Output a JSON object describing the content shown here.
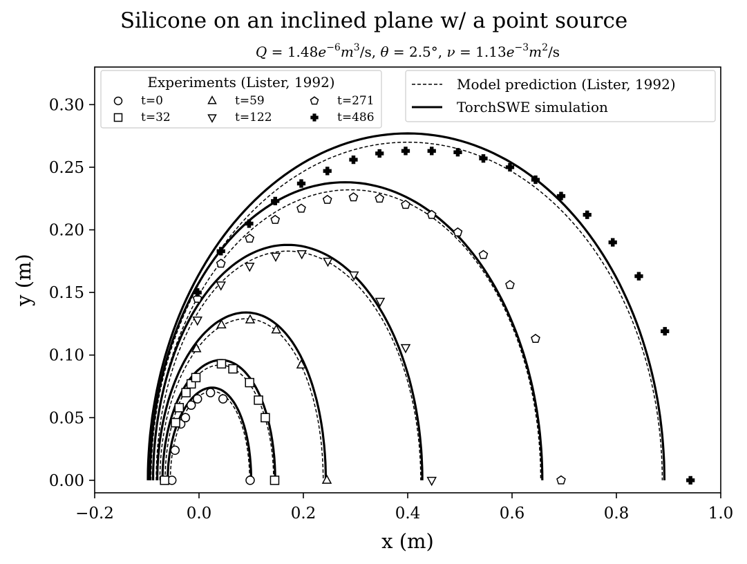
{
  "chart_data": {
    "type": "scatter",
    "title": "Silicone on an inclined plane w/ a point source",
    "subtitle": {
      "q_label": "Q",
      "q_value": "1.48",
      "q_exp": "−6",
      "q_unit_base": "m",
      "q_unit_exp": "3",
      "q_unit_tail": "/s,",
      "theta_label": "θ",
      "theta_value": "2.5°,",
      "nu_label": "ν",
      "nu_value": "1.13",
      "nu_exp": "−3",
      "nu_unit_base": "m",
      "nu_unit_exp": "2",
      "nu_unit_tail": "/s"
    },
    "xlabel": "x (m)",
    "ylabel": "y (m)",
    "xlim": [
      -0.2,
      1.0
    ],
    "ylim": [
      -0.01,
      0.33
    ],
    "xticks": [
      -0.2,
      0.0,
      0.2,
      0.4,
      0.6,
      0.8,
      1.0
    ],
    "xtick_labels": [
      "−0.2",
      "0.0",
      "0.2",
      "0.4",
      "0.6",
      "0.8",
      "1.0"
    ],
    "yticks": [
      0.0,
      0.05,
      0.1,
      0.15,
      0.2,
      0.25,
      0.3
    ],
    "ytick_labels": [
      "0.00",
      "0.05",
      "0.10",
      "0.15",
      "0.20",
      "0.25",
      "0.30"
    ],
    "grid": false,
    "legend_experiments": {
      "title": "Experiments (Lister, 1992)",
      "placement": "top-left"
    },
    "legend_models": {
      "placement": "top-right",
      "entries": [
        {
          "label": "Model prediction (Lister, 1992)",
          "style": "dashed"
        },
        {
          "label": "TorchSWE simulation",
          "style": "solid"
        }
      ]
    },
    "experiments": [
      {
        "name": "t=0",
        "marker": "circle",
        "points": [
          [
            -0.052,
            0.0
          ],
          [
            -0.046,
            0.024
          ],
          [
            -0.035,
            0.045
          ],
          [
            -0.026,
            0.05
          ],
          [
            -0.015,
            0.06
          ],
          [
            -0.003,
            0.065
          ],
          [
            0.022,
            0.07
          ],
          [
            0.046,
            0.065
          ],
          [
            0.098,
            0.0
          ]
        ]
      },
      {
        "name": "t=32",
        "marker": "square",
        "points": [
          [
            -0.066,
            0.0
          ],
          [
            -0.045,
            0.046
          ],
          [
            -0.038,
            0.058
          ],
          [
            -0.025,
            0.07
          ],
          [
            -0.015,
            0.077
          ],
          [
            -0.006,
            0.082
          ],
          [
            0.043,
            0.093
          ],
          [
            0.065,
            0.089
          ],
          [
            0.097,
            0.078
          ],
          [
            0.114,
            0.064
          ],
          [
            0.127,
            0.05
          ],
          [
            0.145,
            0.0
          ]
        ]
      },
      {
        "name": "t=59",
        "marker": "triangle-up",
        "points": [
          [
            -0.005,
            0.105
          ],
          [
            0.043,
            0.124
          ],
          [
            0.098,
            0.128
          ],
          [
            0.148,
            0.12
          ],
          [
            0.196,
            0.092
          ],
          [
            0.245,
            0.0
          ]
        ]
      },
      {
        "name": "t=122",
        "marker": "triangle-down",
        "points": [
          [
            -0.003,
            0.128
          ],
          [
            0.042,
            0.156
          ],
          [
            0.097,
            0.171
          ],
          [
            0.147,
            0.179
          ],
          [
            0.197,
            0.181
          ],
          [
            0.247,
            0.175
          ],
          [
            0.297,
            0.164
          ],
          [
            0.347,
            0.143
          ],
          [
            0.396,
            0.106
          ],
          [
            0.446,
            0.0
          ]
        ]
      },
      {
        "name": "t=271",
        "marker": "pentagon",
        "points": [
          [
            -0.003,
            0.145
          ],
          [
            0.042,
            0.173
          ],
          [
            0.097,
            0.193
          ],
          [
            0.146,
            0.208
          ],
          [
            0.196,
            0.217
          ],
          [
            0.246,
            0.224
          ],
          [
            0.296,
            0.226
          ],
          [
            0.346,
            0.225
          ],
          [
            0.396,
            0.22
          ],
          [
            0.446,
            0.212
          ],
          [
            0.496,
            0.198
          ],
          [
            0.545,
            0.18
          ],
          [
            0.596,
            0.156
          ],
          [
            0.645,
            0.113
          ],
          [
            0.694,
            0.0
          ]
        ]
      },
      {
        "name": "t=486",
        "marker": "x-filled",
        "points": [
          [
            -0.003,
            0.15
          ],
          [
            0.042,
            0.183
          ],
          [
            0.096,
            0.205
          ],
          [
            0.146,
            0.223
          ],
          [
            0.196,
            0.237
          ],
          [
            0.246,
            0.247
          ],
          [
            0.296,
            0.256
          ],
          [
            0.346,
            0.261
          ],
          [
            0.396,
            0.263
          ],
          [
            0.446,
            0.263
          ],
          [
            0.496,
            0.262
          ],
          [
            0.545,
            0.257
          ],
          [
            0.596,
            0.25
          ],
          [
            0.645,
            0.24
          ],
          [
            0.694,
            0.227
          ],
          [
            0.744,
            0.212
          ],
          [
            0.793,
            0.19
          ],
          [
            0.843,
            0.163
          ],
          [
            0.893,
            0.119
          ],
          [
            0.942,
            0.0
          ]
        ]
      }
    ],
    "model_curves": [
      {
        "x0": -0.055,
        "x1": 0.097,
        "ymax": 0.071,
        "xpeak": 0.025
      },
      {
        "x0": -0.065,
        "x1": 0.143,
        "ymax": 0.092,
        "xpeak": 0.04
      },
      {
        "x0": -0.075,
        "x1": 0.238,
        "ymax": 0.129,
        "xpeak": 0.09
      },
      {
        "x0": -0.082,
        "x1": 0.425,
        "ymax": 0.183,
        "xpeak": 0.17
      },
      {
        "x0": -0.088,
        "x1": 0.655,
        "ymax": 0.232,
        "xpeak": 0.29
      },
      {
        "x0": -0.092,
        "x1": 0.888,
        "ymax": 0.27,
        "xpeak": 0.4
      }
    ],
    "sim_curves": [
      {
        "x0": -0.06,
        "x1": 0.1,
        "ymax": 0.074,
        "xpeak": 0.025
      },
      {
        "x0": -0.07,
        "x1": 0.146,
        "ymax": 0.096,
        "xpeak": 0.042
      },
      {
        "x0": -0.08,
        "x1": 0.243,
        "ymax": 0.134,
        "xpeak": 0.09
      },
      {
        "x0": -0.088,
        "x1": 0.428,
        "ymax": 0.188,
        "xpeak": 0.17
      },
      {
        "x0": -0.094,
        "x1": 0.658,
        "ymax": 0.238,
        "xpeak": 0.28
      },
      {
        "x0": -0.098,
        "x1": 0.892,
        "ymax": 0.277,
        "xpeak": 0.4
      }
    ]
  }
}
